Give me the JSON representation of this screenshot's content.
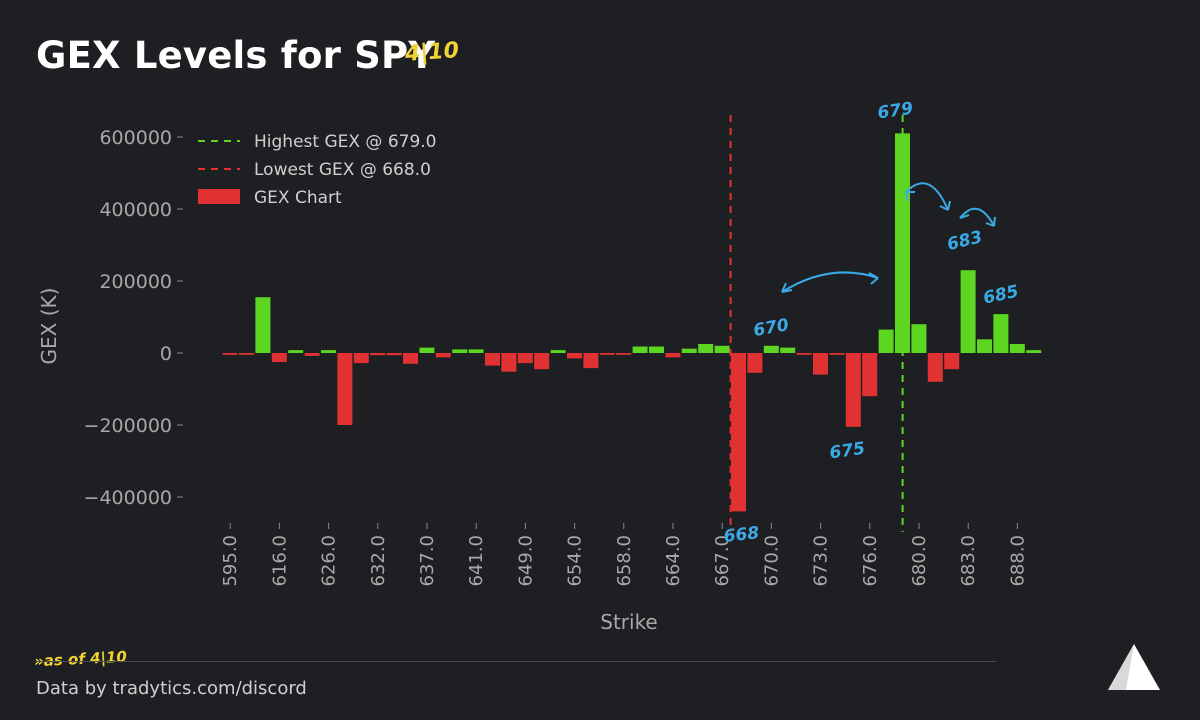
{
  "header": {
    "title": "GEX Levels for SPY",
    "handwritten_date": "4|10"
  },
  "footer": {
    "source": "Data by tradytics.com/discord",
    "handwritten_note": "»as of 4|10"
  },
  "colors": {
    "positive": "#5cd620",
    "negative": "#e03232",
    "highest_line": "#5cd620",
    "lowest_line": "#e03232",
    "annotation": "#3aa9e6",
    "handwriting": "#f2d335"
  },
  "chart_data": {
    "type": "bar",
    "title": "GEX Levels for SPY",
    "xlabel": "Strike",
    "ylabel": "GEX (K)",
    "ylim": [
      -480000,
      640000
    ],
    "yticks": [
      600000,
      400000,
      200000,
      0,
      -200000,
      -400000
    ],
    "ytick_labels": [
      "600000",
      "400000",
      "200000",
      "0",
      "−200000",
      "−400000"
    ],
    "xtick_labels": [
      "595.0",
      "616.0",
      "626.0",
      "632.0",
      "637.0",
      "641.0",
      "649.0",
      "654.0",
      "658.0",
      "664.0",
      "667.0",
      "670.0",
      "673.0",
      "676.0",
      "680.0",
      "683.0",
      "688.0"
    ],
    "xtick_bar_index": [
      0,
      3,
      6,
      9,
      12,
      15,
      18,
      21,
      24,
      27,
      30,
      33,
      36,
      39,
      42,
      45,
      48
    ],
    "values": [
      -5000,
      -5000,
      155000,
      -25000,
      8000,
      -8000,
      8000,
      -200000,
      -28000,
      -6000,
      -6000,
      -30000,
      15000,
      -12000,
      10000,
      10000,
      -35000,
      -52000,
      -28000,
      -45000,
      8000,
      -15000,
      -42000,
      -5000,
      -5000,
      18000,
      18000,
      -12000,
      12000,
      25000,
      20000,
      -440000,
      -55000,
      20000,
      15000,
      -5000,
      -60000,
      -5000,
      -205000,
      -120000,
      65000,
      610000,
      80000,
      -80000,
      -45000,
      230000,
      38000,
      108000,
      25000,
      8000
    ],
    "highest_line": {
      "label": "Highest GEX @ 679.0",
      "bar_index": 41
    },
    "lowest_line": {
      "label": "Lowest GEX @ 668.0",
      "bar_index": 31
    },
    "legend": {
      "position": "top-left",
      "entries": [
        "Highest GEX @ 679.0",
        "Lowest GEX @ 668.0",
        "GEX Chart"
      ]
    },
    "annotations": [
      {
        "text": "679",
        "bar_index": 41
      },
      {
        "text": "668",
        "bar_index": 31
      },
      {
        "text": "670",
        "bar_index": 33
      },
      {
        "text": "675",
        "bar_index": 38
      },
      {
        "text": "683",
        "bar_index": 45
      },
      {
        "text": "685",
        "bar_index": 47
      }
    ]
  }
}
